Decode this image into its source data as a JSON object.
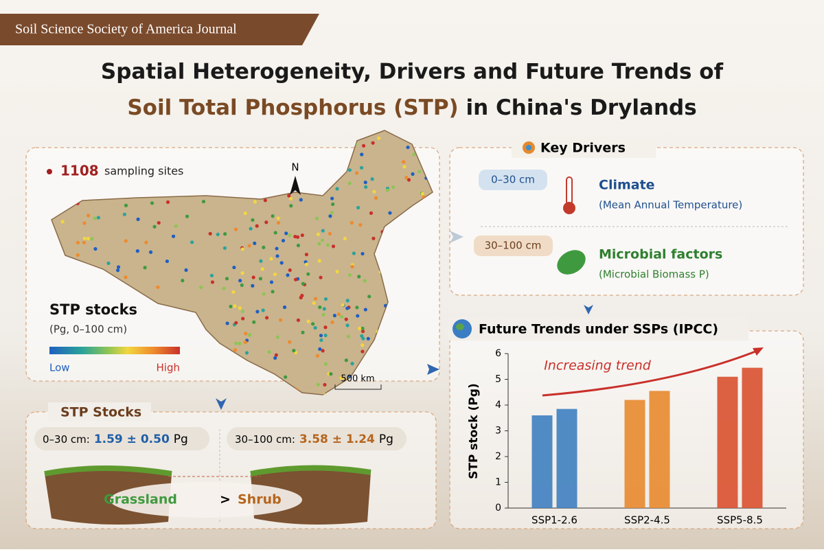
{
  "header": {
    "journal": "Soil Science Society of America Journal",
    "title_line1": "Spatial Heterogeneity, Drivers and Future Trends of",
    "title_line2_highlight": "Soil Total Phosphorus (STP)",
    "title_line2_rest": " in China's Drylands"
  },
  "map_panel": {
    "site_count": "1108",
    "site_label": "sampling sites",
    "north": "N",
    "legend_title": "STP stocks",
    "legend_subtitle": "(Pg, 0–100 cm)",
    "legend_low": "Low",
    "legend_high": "High",
    "scale": "500 km"
  },
  "key_drivers": {
    "title": "Key Drivers",
    "items": [
      {
        "depth": "0–30 cm",
        "factor": "Climate",
        "detail": "(Mean Annual Temperature)"
      },
      {
        "depth": "30–100 cm",
        "factor": "Microbial factors",
        "detail": "(Microbial Biomass P)"
      }
    ]
  },
  "stp_stocks": {
    "title": "STP Stocks",
    "items": [
      {
        "depth": "0–30 cm:",
        "value": "1.59 ± 0.50",
        "unit": "Pg"
      },
      {
        "depth": "30–100 cm:",
        "value": "3.58 ± 1.24",
        "unit": "Pg"
      }
    ],
    "left": "Grassland",
    "comparator": ">",
    "right": "Shrub"
  },
  "chart_data": {
    "type": "bar",
    "title": "Future Trends under SSPs (IPCC)",
    "annotation": "Increasing trend",
    "y_label": "STP stock (Pg)",
    "categories": [
      "SSP1-2.6",
      "SSP2-4.5",
      "SSP5-8.5"
    ],
    "colors": [
      "#3f7fc0",
      "#e8892e",
      "#d9512f"
    ],
    "series": [
      {
        "values": [
          3.6,
          4.2,
          5.1
        ]
      },
      {
        "values": [
          3.85,
          4.55,
          5.45
        ]
      }
    ],
    "ylim": [
      0,
      6
    ],
    "yticks": [
      0,
      1,
      2,
      3,
      4,
      5,
      6
    ]
  }
}
